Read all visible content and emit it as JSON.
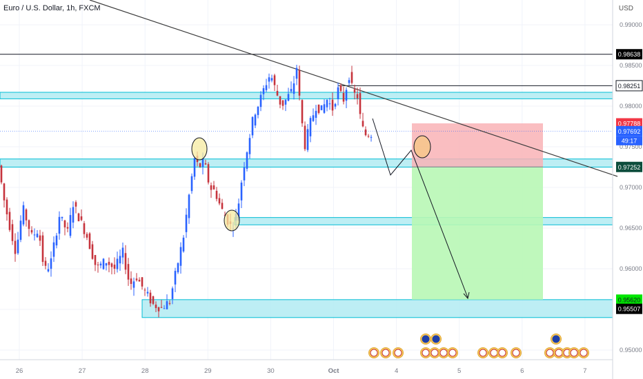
{
  "header": {
    "symbol_title": "Euro / U.S. Dollar, 1h, FXCM",
    "currency": "USD"
  },
  "chart_data": {
    "type": "candlestick",
    "title": "Euro / U.S. Dollar, 1h, FXCM",
    "x_ticks": [
      "26",
      "27",
      "28",
      "29",
      "30",
      "Oct",
      "4",
      "5",
      "6",
      "7"
    ],
    "y_ticks": [
      "0.99000",
      "0.98500",
      "0.98000",
      "0.97500",
      "0.97000",
      "0.96500",
      "0.96000",
      "0.95500",
      "0.95000"
    ],
    "ylim": [
      0.9475,
      0.991
    ],
    "grid": true,
    "countdown": "49:17",
    "badges": [
      {
        "label": "0.98638",
        "value": 0.98638,
        "bg": "#000000",
        "fg": "#ffffff"
      },
      {
        "label": "0.98251",
        "value": 0.98251,
        "bg": "#ffffff",
        "fg": "#131722",
        "border": "#131722"
      },
      {
        "label": "0.97788",
        "value": 0.97788,
        "bg": "#f23645",
        "fg": "#ffffff"
      },
      {
        "label": "0.97692",
        "value": 0.97692,
        "bg": "#2962ff",
        "fg": "#ffffff"
      },
      {
        "label": "0.97252",
        "value": 0.97252,
        "bg": "#0d4d3c",
        "fg": "#ffffff"
      },
      {
        "label": "0.95620",
        "value": 0.9562,
        "bg": "#00e600",
        "fg": "#131722"
      },
      {
        "label": "0.95507",
        "value": 0.95507,
        "bg": "#000000",
        "fg": "#ffffff"
      }
    ],
    "horizontal_lines": [
      0.98638,
      0.98251
    ],
    "last_price": 0.97692,
    "zones": [
      {
        "from": 0.9809,
        "to": 0.9817
      },
      {
        "from": 0.9735,
        "to": 0.9725
      },
      {
        "from": 0.9663,
        "to": 0.9654
      },
      {
        "from": 0.9562,
        "to": 0.954
      }
    ],
    "trade": {
      "entry": 0.97252,
      "stop": 0.97788,
      "target": 0.9562
    }
  },
  "colors": {
    "up_candle": "#2962ff",
    "down_candle": "#c6333c",
    "zone_fill": "#b2ebf2",
    "zone_stroke": "#00bcd4",
    "stop_fill": "#f9b3b6",
    "target_fill": "#b8f7b5",
    "highlight_circle": "#f5eba0"
  },
  "icons": [
    "us-flag-event-icon",
    "eu-flag-event-icon"
  ]
}
